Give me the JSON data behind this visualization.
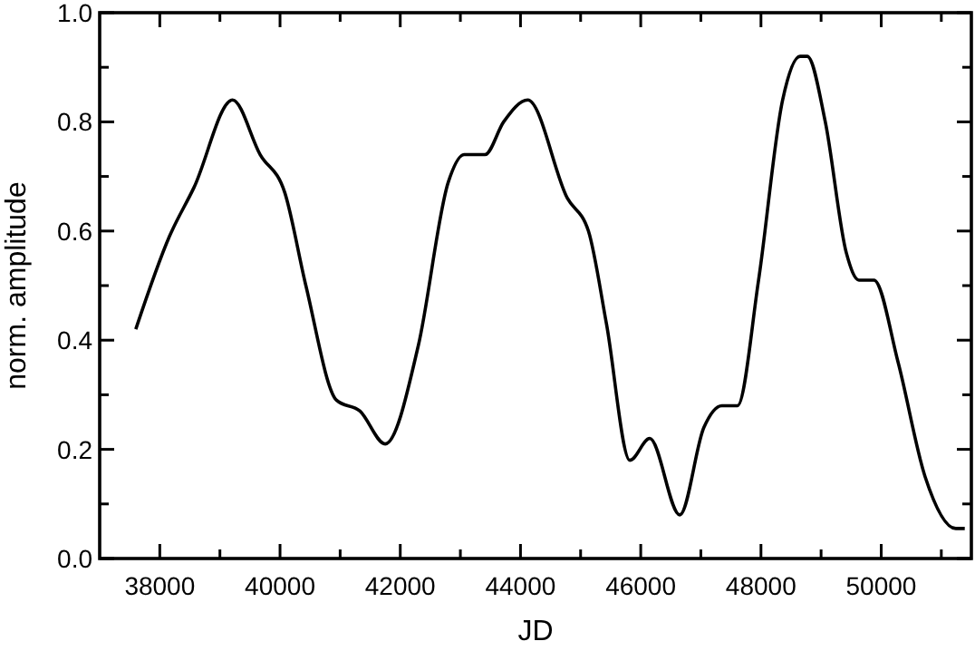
{
  "chart_data": {
    "type": "line",
    "xlabel": "JD",
    "ylabel": "norm. amplitude",
    "xlim": [
      37000,
      51500
    ],
    "ylim": [
      0,
      1
    ],
    "xticks": [
      38000,
      {
        "value": 39000,
        "label": null
      },
      40000,
      {
        "value": 41000,
        "label": null
      },
      42000,
      {
        "value": 43000,
        "label": null
      },
      44000,
      {
        "value": 45000,
        "label": null
      },
      46000,
      {
        "value": 47000,
        "label": null
      },
      48000,
      {
        "value": 49000,
        "label": null
      },
      50000,
      {
        "value": 51000,
        "label": null
      }
    ],
    "yticks": [
      {
        "value": 0,
        "label": "0.0"
      },
      {
        "value": 0.1,
        "label": null
      },
      0.2,
      {
        "value": 0.3,
        "label": null
      },
      0.4,
      {
        "value": 0.5,
        "label": null
      },
      0.6,
      {
        "value": 0.7,
        "label": null
      },
      0.8,
      {
        "value": 0.9,
        "label": null
      },
      {
        "value": 1,
        "label": "1.0"
      }
    ],
    "marker": "none",
    "line_style": "solid",
    "series": [
      {
        "color": "#000000",
        "x": [
          37600,
          38160,
          38570,
          39210,
          39670,
          40080,
          40430,
          40940,
          41330,
          41750,
          42300,
          42800,
          43060,
          43410,
          43720,
          44120,
          44780,
          45130,
          45430,
          45820,
          46150,
          46650,
          47050,
          47350,
          47610,
          47960,
          48360,
          48650,
          48770,
          49070,
          49420,
          49630,
          49880,
          50280,
          50730,
          51240,
          51390
        ],
        "values": [
          0.42,
          0.59,
          0.68,
          0.84,
          0.74,
          0.67,
          0.5,
          0.29,
          0.27,
          0.21,
          0.39,
          0.69,
          0.74,
          0.74,
          0.8,
          0.84,
          0.66,
          0.6,
          0.43,
          0.18,
          0.22,
          0.08,
          0.24,
          0.28,
          0.28,
          0.51,
          0.84,
          0.92,
          0.92,
          0.8,
          0.56,
          0.51,
          0.51,
          0.36,
          0.15,
          0.055,
          0.055
        ]
      }
    ]
  }
}
